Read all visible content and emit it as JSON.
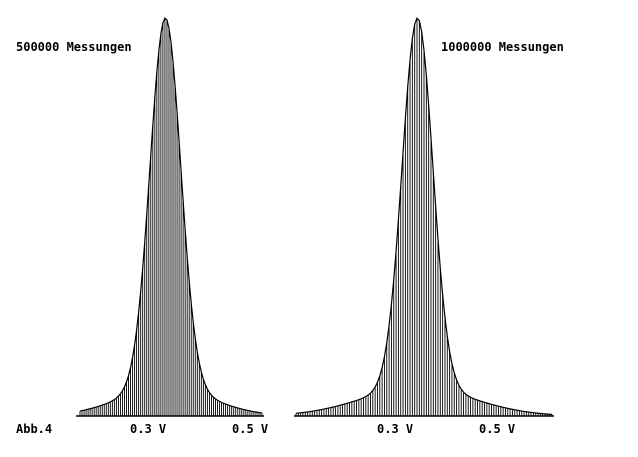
{
  "figure_label": "Abb.4",
  "chart_data": [
    {
      "type": "bar",
      "title": "500000 Messungen",
      "xlabel": "",
      "ylabel": "",
      "x_unit": "V",
      "xlim": [
        0.16,
        0.56
      ],
      "ylim": [
        0,
        1
      ],
      "x_ticks": [
        {
          "value": 0.3,
          "label": "0.3 V"
        },
        {
          "value": 0.5,
          "label": "0.5 V"
        }
      ],
      "distribution": {
        "shape": "gaussian-like",
        "peak_x": 0.34,
        "sigma": 0.03,
        "tail_sigma": 0.045
      },
      "bin_count": 90,
      "grid": false
    },
    {
      "type": "bar",
      "title": "1000000 Messungen",
      "xlabel": "",
      "ylabel": "",
      "x_unit": "V",
      "xlim": [
        0.12,
        0.6
      ],
      "ylim": [
        0,
        1
      ],
      "x_ticks": [
        {
          "value": 0.3,
          "label": "0.3 V"
        },
        {
          "value": 0.5,
          "label": "0.5 V"
        }
      ],
      "distribution": {
        "shape": "gaussian-like",
        "peak_x": 0.35,
        "sigma": 0.03,
        "tail_sigma": 0.055
      },
      "bin_count": 110,
      "grid": false
    }
  ]
}
